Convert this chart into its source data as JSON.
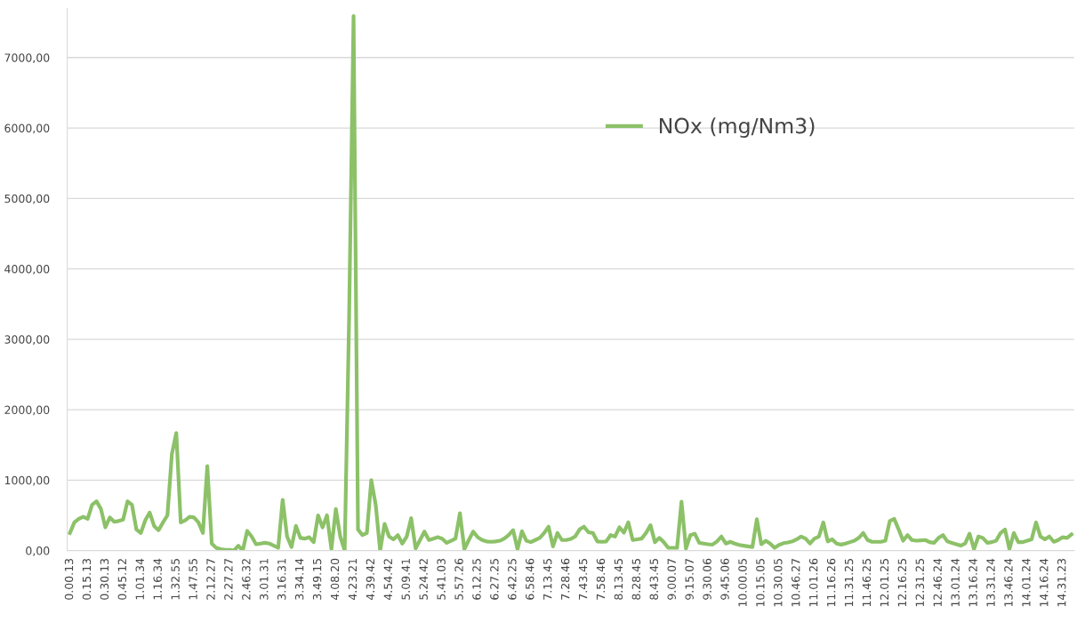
{
  "chart_data": {
    "type": "line",
    "categories": [
      "0.00.13",
      null,
      null,
      null,
      "0.15.13",
      null,
      null,
      null,
      "0.30.13",
      null,
      null,
      null,
      "0.45.12",
      null,
      null,
      null,
      "1.01.34",
      null,
      null,
      null,
      "1.16.34",
      null,
      null,
      null,
      "1.32.55",
      null,
      null,
      null,
      "1.47.55",
      null,
      null,
      null,
      "2.12.27",
      null,
      null,
      null,
      "2.27.27",
      null,
      null,
      null,
      "2.46.32",
      null,
      null,
      null,
      "3.01.31",
      null,
      null,
      null,
      "3.16.31",
      null,
      null,
      null,
      "3.34.14",
      null,
      null,
      null,
      "3.49.15",
      null,
      null,
      null,
      "4.08.20",
      null,
      null,
      null,
      "4.23.21",
      null,
      null,
      null,
      "4.39.42",
      null,
      null,
      null,
      "4.54.42",
      null,
      null,
      null,
      "5.09.41",
      null,
      null,
      null,
      "5.24.42",
      null,
      null,
      null,
      "5.41.03",
      null,
      null,
      null,
      "5.57.26",
      null,
      null,
      null,
      "6.12.25",
      null,
      null,
      null,
      "6.27.25",
      null,
      null,
      null,
      "6.42.25",
      null,
      null,
      null,
      "6.58.46",
      null,
      null,
      null,
      "7.13.45",
      null,
      null,
      null,
      "7.28.46",
      null,
      null,
      null,
      "7.43.45",
      null,
      null,
      null,
      "7.58.46",
      null,
      null,
      null,
      "8.13.45",
      null,
      null,
      null,
      "8.28.45",
      null,
      null,
      null,
      "8.43.45",
      null,
      null,
      null,
      "9.00.07",
      null,
      null,
      null,
      "9.15.07",
      null,
      null,
      null,
      "9.30.06",
      null,
      null,
      null,
      "9.45.06",
      null,
      null,
      null,
      "10.00.05",
      null,
      null,
      null,
      "10.15.05",
      null,
      null,
      null,
      "10.30.05",
      null,
      null,
      null,
      "10.46.27",
      null,
      null,
      null,
      "11.01.26",
      null,
      null,
      null,
      "11.16.26",
      null,
      null,
      null,
      "11.31.25",
      null,
      null,
      null,
      "11.46.25",
      null,
      null,
      null,
      "12.01.25",
      null,
      null,
      null,
      "12.16.25",
      null,
      null,
      null,
      "12.31.25",
      null,
      null,
      null,
      "12.46.24",
      null,
      null,
      null,
      "13.01.24",
      null,
      null,
      null,
      "13.16.24",
      null,
      null,
      null,
      "13.31.24",
      null,
      null,
      null,
      "13.46.24",
      null,
      null,
      null,
      "14.01.24",
      null,
      null,
      null,
      "14.16.24",
      null,
      null,
      null,
      "14.31.23",
      null,
      null
    ],
    "series": [
      {
        "name": "NOx (mg/Nm3)",
        "color": "#8cc168",
        "values": [
          250,
          400,
          450,
          480,
          450,
          650,
          700,
          590,
          330,
          470,
          410,
          420,
          440,
          700,
          650,
          300,
          250,
          430,
          540,
          350,
          290,
          400,
          500,
          1370,
          1670,
          400,
          430,
          480,
          470,
          400,
          250,
          1200,
          100,
          40,
          20,
          10,
          10,
          0,
          70,
          0,
          280,
          200,
          90,
          100,
          110,
          100,
          70,
          40,
          720,
          200,
          50,
          350,
          180,
          170,
          190,
          120,
          500,
          330,
          500,
          20,
          590,
          200,
          0,
          3330,
          7590,
          300,
          220,
          250,
          1000,
          650,
          0,
          380,
          200,
          160,
          220,
          100,
          200,
          460,
          30,
          150,
          270,
          150,
          170,
          190,
          170,
          110,
          140,
          170,
          530,
          20,
          150,
          270,
          190,
          150,
          130,
          125,
          130,
          140,
          170,
          220,
          290,
          20,
          275,
          140,
          120,
          150,
          180,
          250,
          340,
          60,
          250,
          150,
          150,
          165,
          200,
          300,
          340,
          260,
          250,
          130,
          125,
          130,
          220,
          200,
          330,
          255,
          400,
          150,
          160,
          170,
          250,
          360,
          120,
          180,
          120,
          40,
          40,
          40,
          695,
          30,
          220,
          240,
          110,
          100,
          90,
          85,
          130,
          200,
          100,
          125,
          100,
          80,
          70,
          60,
          50,
          445,
          90,
          140,
          100,
          40,
          80,
          105,
          115,
          130,
          160,
          200,
          170,
          100,
          170,
          200,
          400,
          130,
          160,
          100,
          85,
          100,
          120,
          140,
          180,
          250,
          150,
          125,
          125,
          125,
          140,
          420,
          450,
          300,
          140,
          220,
          150,
          140,
          145,
          150,
          120,
          110,
          180,
          220,
          130,
          110,
          90,
          70,
          100,
          240,
          20,
          200,
          180,
          110,
          120,
          140,
          250,
          300,
          20,
          250,
          120,
          120,
          140,
          160,
          400,
          200,
          160,
          200,
          125,
          150,
          190,
          180,
          230
        ]
      }
    ],
    "ylim": [
      0,
      7700
    ],
    "yticks": [
      {
        "value": 0,
        "label": "0,00"
      },
      {
        "value": 1000,
        "label": "1000,00"
      },
      {
        "value": 2000,
        "label": "2000,00"
      },
      {
        "value": 3000,
        "label": "3000,00"
      },
      {
        "value": 4000,
        "label": "4000,00"
      },
      {
        "value": 5000,
        "label": "5000,00"
      },
      {
        "value": 6000,
        "label": "6000,00"
      },
      {
        "value": 7000,
        "label": "7000,00"
      }
    ],
    "grid": "y",
    "legend": "top",
    "marker": "none",
    "line_style": "solid"
  }
}
